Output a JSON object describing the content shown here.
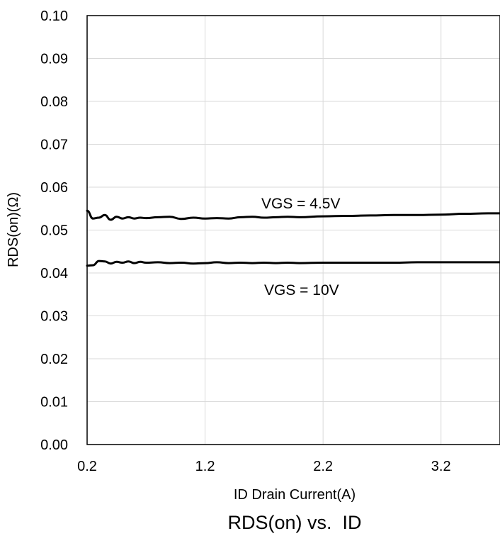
{
  "chart_data": {
    "type": "line",
    "title": "RDS(on) vs.  ID",
    "xlabel": "ID Drain Current(A)",
    "ylabel": "RDS(on)(Ω)",
    "xlim": [
      0.2,
      3.7
    ],
    "ylim": [
      0.0,
      0.1
    ],
    "x_ticks": [
      "0.2",
      "1.2",
      "2.2",
      "3.2"
    ],
    "x_tick_values": [
      0.2,
      1.2,
      2.2,
      3.2
    ],
    "y_ticks": [
      "0.00",
      "0.01",
      "0.02",
      "0.03",
      "0.04",
      "0.05",
      "0.06",
      "0.07",
      "0.08",
      "0.09",
      "0.10"
    ],
    "y_tick_values": [
      0.0,
      0.01,
      0.02,
      0.03,
      0.04,
      0.05,
      0.06,
      0.07,
      0.08,
      0.09,
      0.1
    ],
    "grid": true,
    "annotations": [
      {
        "text": "VGS = 4.5V",
        "series": 0
      },
      {
        "text": "VGS = 10V",
        "series": 1
      }
    ],
    "series": [
      {
        "name": "VGS = 4.5V",
        "x": [
          0.2,
          0.25,
          0.3,
          0.35,
          0.4,
          0.45,
          0.5,
          0.55,
          0.6,
          0.65,
          0.7,
          0.8,
          0.9,
          1.0,
          1.1,
          1.2,
          1.3,
          1.4,
          1.5,
          1.6,
          1.7,
          1.8,
          1.9,
          2.0,
          2.2,
          2.4,
          2.6,
          2.8,
          3.0,
          3.2,
          3.4,
          3.6,
          3.7
        ],
        "y": [
          0.0545,
          0.0527,
          0.0529,
          0.0535,
          0.0524,
          0.0531,
          0.0527,
          0.053,
          0.0527,
          0.0529,
          0.0528,
          0.053,
          0.0531,
          0.0526,
          0.0529,
          0.0527,
          0.0528,
          0.0527,
          0.053,
          0.0531,
          0.0529,
          0.053,
          0.0531,
          0.053,
          0.0532,
          0.0533,
          0.0534,
          0.0535,
          0.0535,
          0.0536,
          0.0538,
          0.0539,
          0.0539
        ]
      },
      {
        "name": "VGS = 10V",
        "x": [
          0.2,
          0.25,
          0.3,
          0.35,
          0.4,
          0.45,
          0.5,
          0.55,
          0.6,
          0.65,
          0.7,
          0.8,
          0.9,
          1.0,
          1.1,
          1.2,
          1.3,
          1.4,
          1.5,
          1.6,
          1.7,
          1.8,
          1.9,
          2.0,
          2.2,
          2.4,
          2.6,
          2.8,
          3.0,
          3.2,
          3.4,
          3.6,
          3.7
        ],
        "y": [
          0.0417,
          0.0418,
          0.0428,
          0.0427,
          0.0422,
          0.0426,
          0.0424,
          0.0427,
          0.0423,
          0.0426,
          0.0424,
          0.0425,
          0.0423,
          0.0424,
          0.0422,
          0.0423,
          0.0425,
          0.0423,
          0.0424,
          0.0423,
          0.0424,
          0.0423,
          0.0424,
          0.0423,
          0.0424,
          0.0424,
          0.0424,
          0.0424,
          0.0425,
          0.0425,
          0.0425,
          0.0425,
          0.0425
        ]
      }
    ]
  }
}
